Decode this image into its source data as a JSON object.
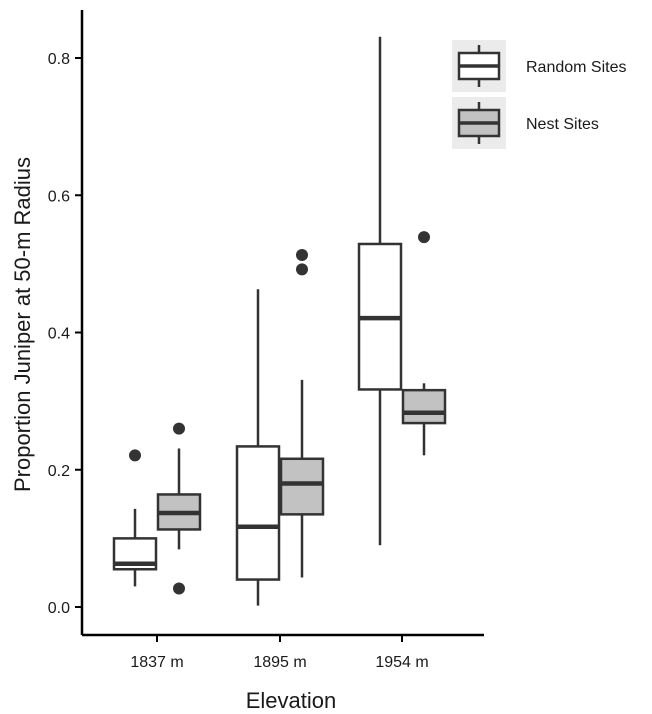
{
  "chart_data": {
    "type": "boxplot",
    "title": "",
    "xlabel": "Elevation",
    "ylabel": "Proportion Juniper at 50-m Radius",
    "categories": [
      "1837 m",
      "1895 m",
      "1954 m"
    ],
    "ylim": [
      -0.04,
      0.87
    ],
    "yticks": [
      0.0,
      0.2,
      0.4,
      0.6,
      0.8
    ],
    "ytick_labels": [
      "0.0",
      "0.2",
      "0.4",
      "0.6",
      "0.8"
    ],
    "grid": false,
    "legend_position": "top-right",
    "series": [
      {
        "name": "Random Sites",
        "fill": "#ffffff",
        "boxes": [
          {
            "category": "1837 m",
            "whisker_low": 0.03,
            "q1": 0.055,
            "median": 0.063,
            "q3": 0.1,
            "whisker_high": 0.143,
            "outliers": [
              0.221
            ]
          },
          {
            "category": "1895 m",
            "whisker_low": 0.002,
            "q1": 0.04,
            "median": 0.117,
            "q3": 0.234,
            "whisker_high": 0.463,
            "outliers": []
          },
          {
            "category": "1954 m",
            "whisker_low": 0.09,
            "q1": 0.317,
            "median": 0.421,
            "q3": 0.529,
            "whisker_high": 0.831,
            "outliers": []
          }
        ]
      },
      {
        "name": "Nest Sites",
        "fill": "#c2c2c2",
        "boxes": [
          {
            "category": "1837 m",
            "whisker_low": 0.084,
            "q1": 0.113,
            "median": 0.137,
            "q3": 0.164,
            "whisker_high": 0.231,
            "outliers": [
              0.027,
              0.26
            ]
          },
          {
            "category": "1895 m",
            "whisker_low": 0.043,
            "q1": 0.135,
            "median": 0.18,
            "q3": 0.216,
            "whisker_high": 0.331,
            "outliers": [
              0.492,
              0.513
            ]
          },
          {
            "category": "1954 m",
            "whisker_low": 0.221,
            "q1": 0.268,
            "median": 0.283,
            "q3": 0.316,
            "whisker_high": 0.326,
            "outliers": [
              0.539
            ]
          }
        ]
      }
    ]
  },
  "colors": {
    "line": "#333333",
    "axis": "#000000",
    "outlier": "#333333",
    "legend_key_background": "#ebebeb"
  }
}
